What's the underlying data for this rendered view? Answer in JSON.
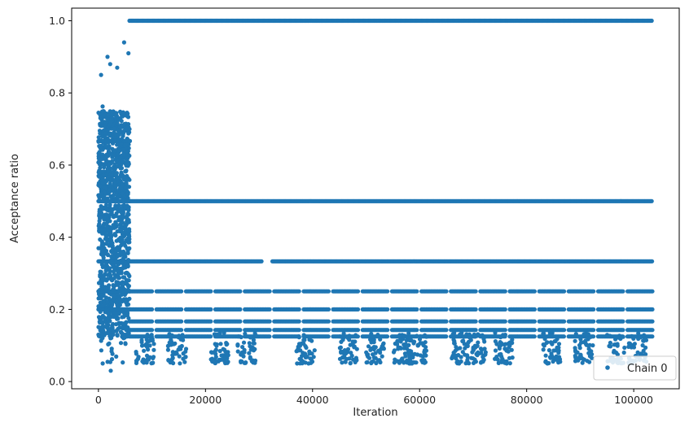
{
  "chart_data": {
    "type": "scatter",
    "title": "",
    "xlabel": "Iteration",
    "ylabel": "Acceptance ratio",
    "xlim": [
      -5000,
      108500
    ],
    "ylim": [
      -0.02,
      1.035
    ],
    "x_ticks": [
      0,
      20000,
      40000,
      60000,
      80000,
      100000
    ],
    "x_tick_labels": [
      "0",
      "20000",
      "40000",
      "60000",
      "80000",
      "100000"
    ],
    "y_ticks": [
      0.0,
      0.2,
      0.4,
      0.6,
      0.8,
      1.0
    ],
    "y_tick_labels": [
      "0.0",
      "0.2",
      "0.4",
      "0.6",
      "0.8",
      "1.0"
    ],
    "grid": false,
    "legend_position": "bottom-right",
    "series": [
      {
        "name": "Chain 0",
        "color": "#1f77b4",
        "marker": "circle",
        "x_range": [
          0,
          103500
        ],
        "burn_in_end": 6000,
        "levels": [
          {
            "y": 1.0,
            "x_ranges": [
              [
                5800,
                103500
              ]
            ]
          },
          {
            "y": 0.5,
            "x_ranges": [
              [
                5800,
                103500
              ]
            ]
          },
          {
            "y": 0.3333,
            "x_ranges": [
              [
                5800,
                30500
              ],
              [
                32500,
                103500
              ]
            ]
          },
          {
            "y": 0.25,
            "x_ranges": [
              [
                5800,
                103500
              ]
            ]
          },
          {
            "y": 0.2,
            "x_ranges": [
              [
                5800,
                103500
              ]
            ]
          },
          {
            "y": 0.1667,
            "x_ranges": [
              [
                5800,
                103500
              ]
            ]
          },
          {
            "y": 0.1429,
            "x_ranges": [
              [
                5800,
                103500
              ]
            ]
          },
          {
            "y": 0.125,
            "x_ranges": [
              [
                6000,
                103500
              ]
            ]
          }
        ],
        "burn_in_outliers": [
          {
            "x": 4800,
            "y": 0.94
          },
          {
            "x": 5600,
            "y": 0.91
          },
          {
            "x": 1700,
            "y": 0.9
          },
          {
            "x": 2200,
            "y": 0.88
          },
          {
            "x": 3500,
            "y": 0.87
          },
          {
            "x": 500,
            "y": 0.85
          },
          {
            "x": 800,
            "y": 0.05
          },
          {
            "x": 2300,
            "y": 0.03
          }
        ]
      }
    ]
  }
}
